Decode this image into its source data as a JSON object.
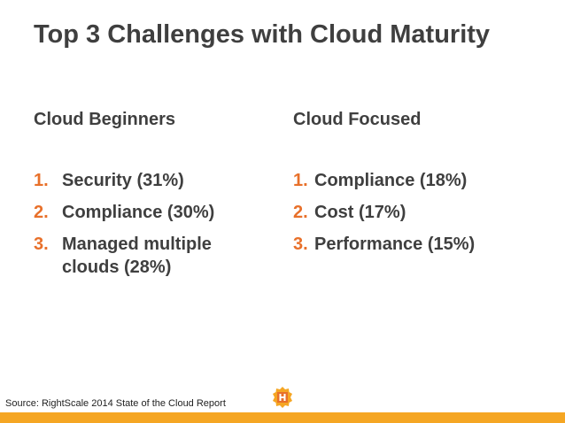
{
  "slide": {
    "title": "Top 3 Challenges with Cloud Maturity",
    "left_column": {
      "heading": "Cloud Beginners",
      "items": [
        {
          "number": "1.",
          "text": "Security (31%)"
        },
        {
          "number": "2.",
          "text": "Compliance (30%)"
        },
        {
          "number": "3.",
          "text": "Managed multiple clouds (28%)"
        }
      ]
    },
    "right_column": {
      "heading": "Cloud Focused",
      "items": [
        {
          "number": "1.",
          "text": "Compliance (18%)"
        },
        {
          "number": "2.",
          "text": "Cost (17%)"
        },
        {
          "number": "3.",
          "text": "Performance (15%)"
        }
      ]
    },
    "source": "Source: RightScale 2014 State of the Cloud Report",
    "logo_icon": "h-badge-icon",
    "colors": {
      "accent": "#e8702a",
      "bar": "#f5a623",
      "text": "#3f3f3f"
    }
  }
}
